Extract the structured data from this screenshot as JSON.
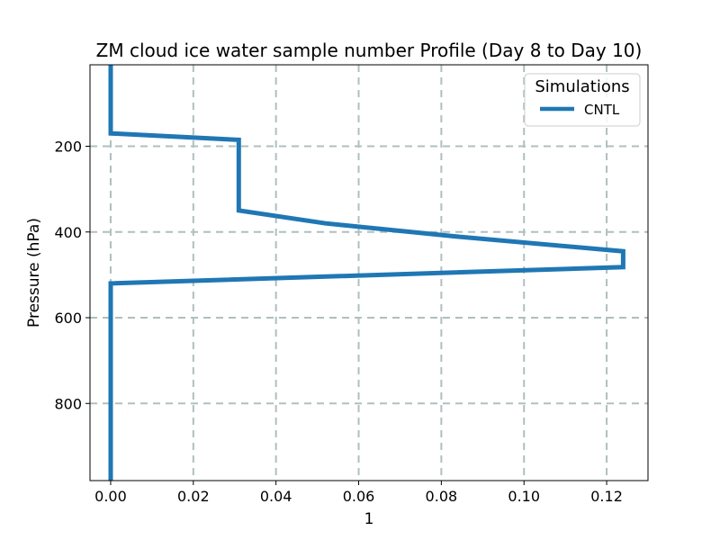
{
  "chart_data": {
    "type": "line",
    "title": "ZM cloud ice water sample number Profile (Day 8 to Day 10)",
    "xlabel": "1",
    "ylabel": "Pressure (hPa)",
    "xlim": [
      -0.005,
      0.13
    ],
    "ylim": [
      980,
      10
    ],
    "y_inverted": true,
    "grid": true,
    "legend_title": "Simulations",
    "legend_placement": "top-right",
    "xticks": [
      0.0,
      0.02,
      0.04,
      0.06,
      0.08,
      0.1,
      0.12
    ],
    "xtick_labels": [
      "0.00",
      "0.02",
      "0.04",
      "0.06",
      "0.08",
      "0.10",
      "0.12"
    ],
    "yticks": [
      200,
      400,
      600,
      800
    ],
    "ytick_labels": [
      "200",
      "400",
      "600",
      "800"
    ],
    "series": [
      {
        "name": "CNTL",
        "color": "#1f77b4",
        "x": [
          0.0,
          0.0,
          0.031,
          0.031,
          0.052,
          0.083,
          0.124,
          0.124,
          0.0,
          0.0
        ],
        "y": [
          10,
          170,
          185,
          350,
          380,
          410,
          445,
          482,
          520,
          980
        ]
      }
    ]
  }
}
